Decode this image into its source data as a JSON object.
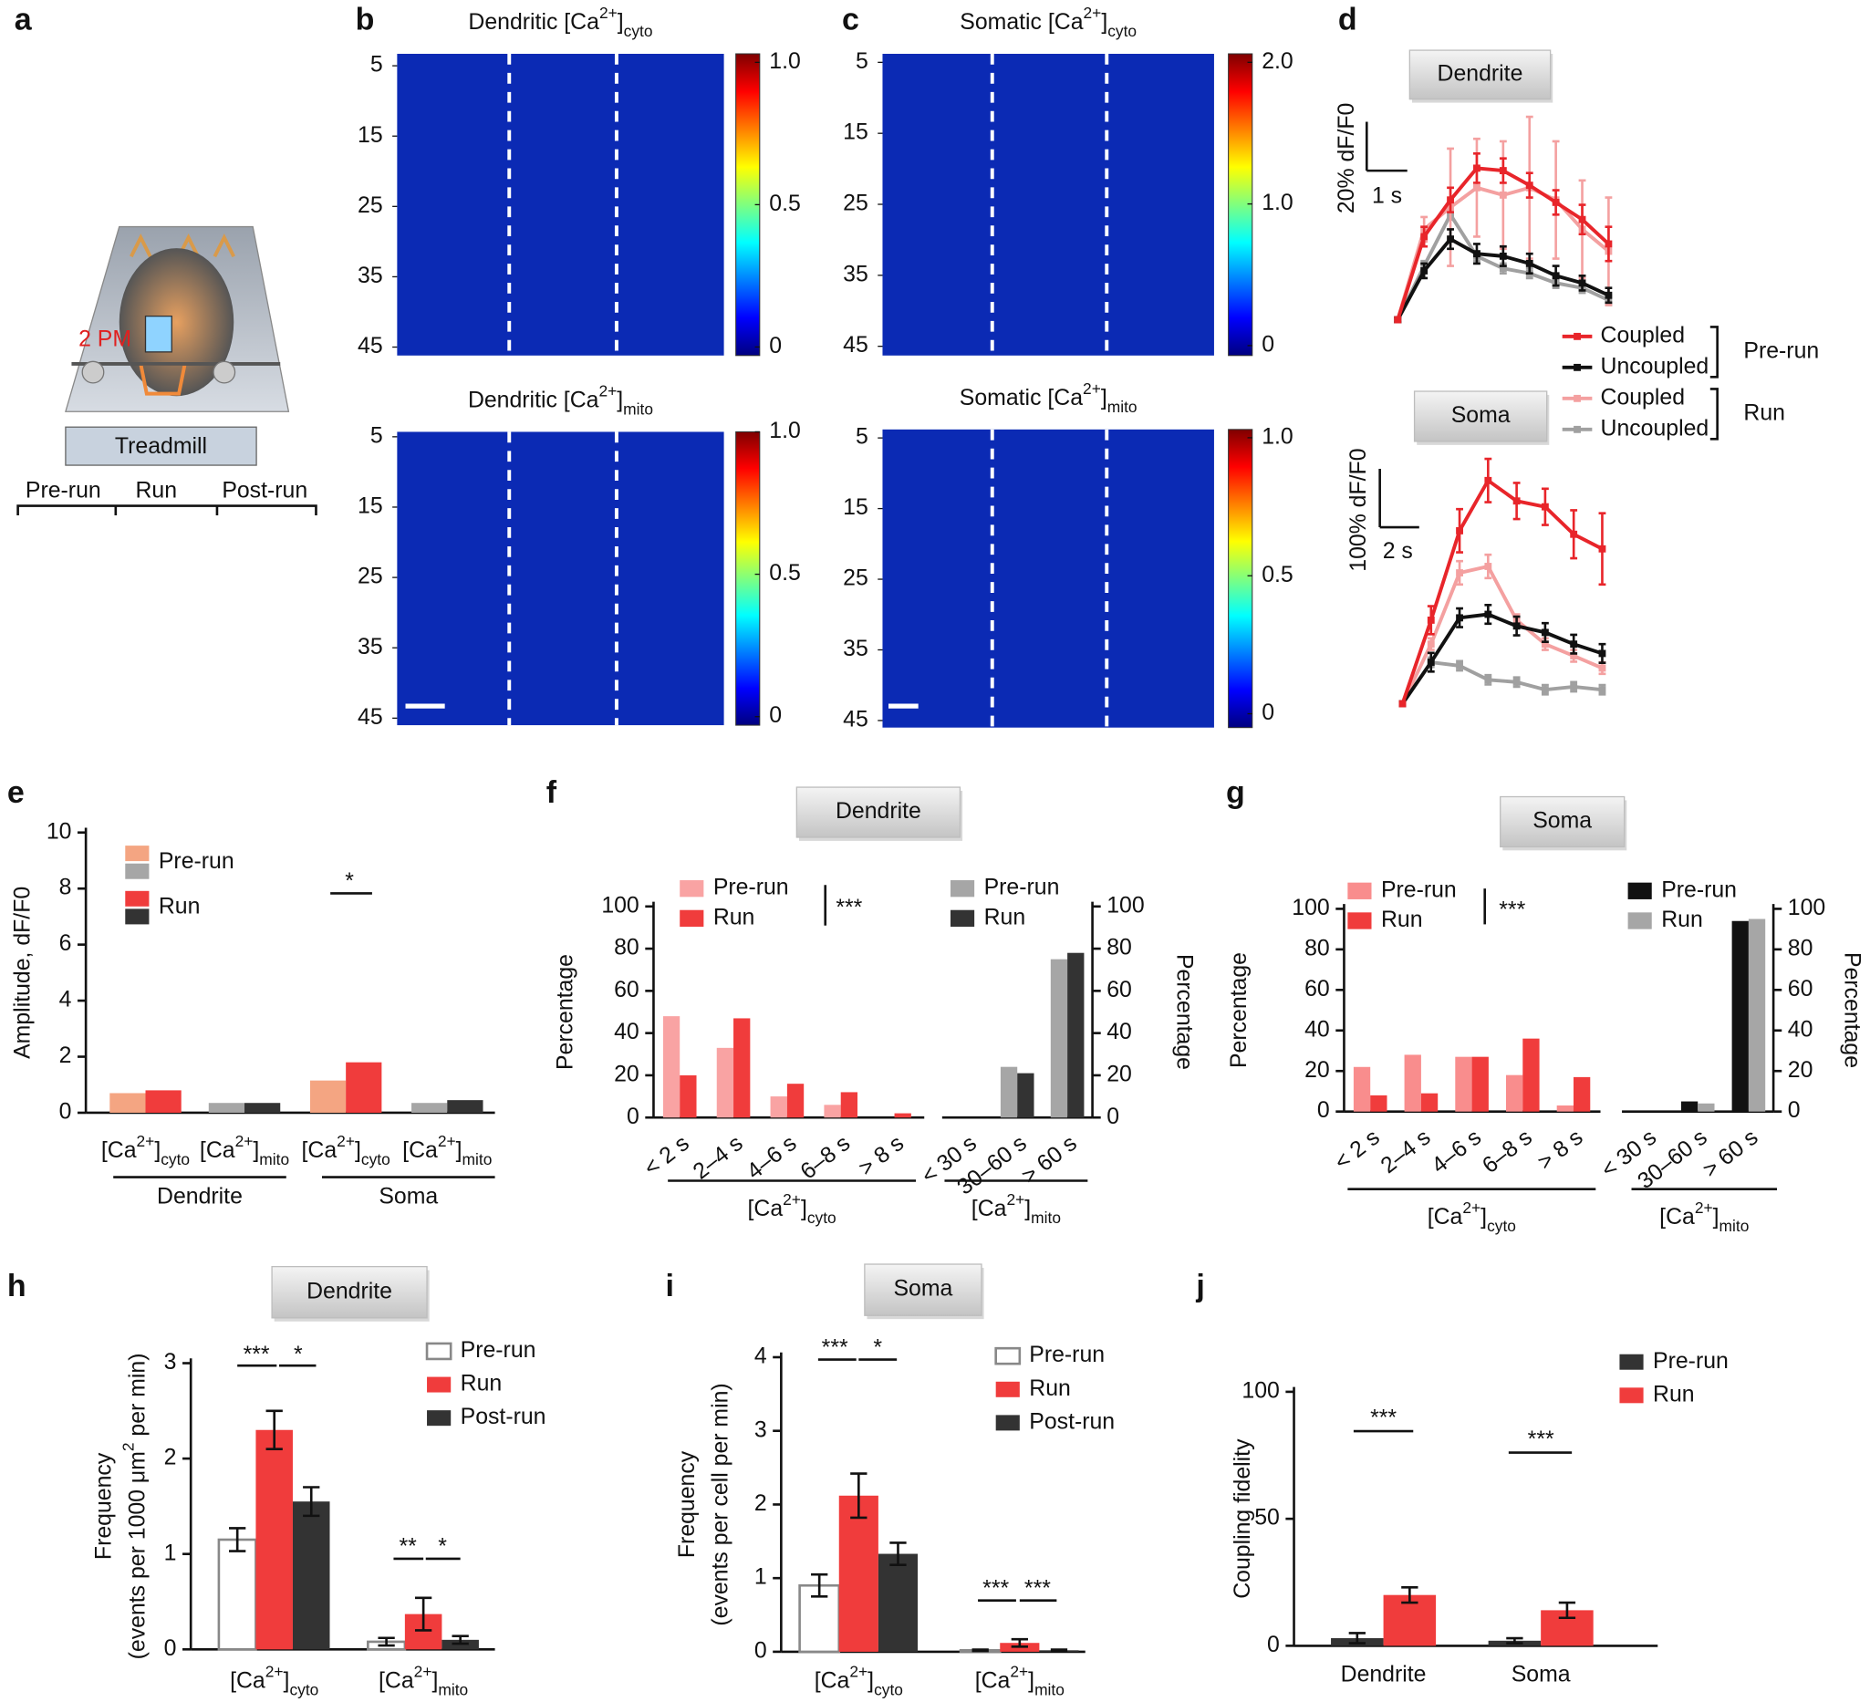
{
  "panel_labels": [
    "a",
    "b",
    "c",
    "d",
    "e",
    "f",
    "g",
    "h",
    "i",
    "j"
  ],
  "schematic": {
    "microscope": "2 PM",
    "device": "Treadmill",
    "phases": [
      "Pre-run",
      "Run",
      "Post-run"
    ]
  },
  "chart_data": [
    {
      "type": "heatmap",
      "title": [
        "Dendritic [Ca",
        "2+",
        "]",
        "cyto"
      ],
      "ylim": [
        3.3,
        46.2
      ],
      "yticks": [
        5,
        15,
        25,
        35,
        45
      ],
      "clim": [
        -0.03,
        1.03
      ],
      "cticks": [
        0,
        0.5,
        {
          "value": 1,
          "label": "1.0"
        }
      ],
      "colormap": [
        "#00007f",
        "#0000ff",
        "#007fff",
        "#00ffff",
        "#7fff7f",
        "#ffff00",
        "#ff7f00",
        "#ff0000",
        "#7f0000"
      ]
    },
    {
      "type": "heatmap",
      "title": [
        "Dendritic [Ca",
        "2+",
        "]",
        "mito"
      ],
      "ylim": [
        4.3,
        46
      ],
      "yticks": [
        5,
        15,
        25,
        35,
        45
      ],
      "clim": [
        -0.03,
        1
      ],
      "cticks": [
        0,
        0.5,
        {
          "value": 1,
          "label": "1.0"
        }
      ],
      "colormap": [
        "#00007f",
        "#0000ff",
        "#007fff",
        "#00ffff",
        "#7fff7f",
        "#ffff00",
        "#ff7f00",
        "#ff0000",
        "#7f0000"
      ]
    },
    {
      "type": "heatmap",
      "title": [
        "Somatic [Ca",
        "2+",
        "]",
        "cyto"
      ],
      "ylim": [
        3.8,
        46.3
      ],
      "yticks": [
        5,
        15,
        25,
        35,
        45
      ],
      "clim": [
        -0.07,
        2.06
      ],
      "cticks": [
        0,
        {
          "value": 1,
          "label": "1.0"
        },
        {
          "value": 2,
          "label": "2.0"
        }
      ],
      "colormap": [
        "#00007f",
        "#0000ff",
        "#007fff",
        "#00ffff",
        "#7fff7f",
        "#ffff00",
        "#ff7f00",
        "#ff0000",
        "#7f0000"
      ]
    },
    {
      "type": "heatmap",
      "title": [
        "Somatic [Ca",
        "2+",
        "]",
        "mito"
      ],
      "ylim": [
        3.8,
        46
      ],
      "yticks": [
        5,
        15,
        25,
        35,
        45
      ],
      "clim": [
        -0.05,
        1.03
      ],
      "cticks": [
        0,
        0.5,
        {
          "value": 1,
          "label": "1.0"
        }
      ],
      "colormap": [
        "#00007f",
        "#0000ff",
        "#007fff",
        "#00ffff",
        "#7fff7f",
        "#ffff00",
        "#ff7f00",
        "#ff0000",
        "#7f0000"
      ]
    },
    {
      "type": "line",
      "series": [
        {
          "name": "Coupled",
          "color": "#e8252a"
        },
        {
          "name": "Uncoupled",
          "color": "#111111"
        },
        {
          "name": "Coupled",
          "color": "#f4a0a0"
        },
        {
          "name": "Uncoupled",
          "color": "#a0a0a0"
        }
      ],
      "legend_groups": [
        "Pre-run",
        "Run"
      ],
      "panels": [
        {
          "title": "Dendrite",
          "scale_y": 20,
          "scale_y_label": "20% dF/F0",
          "scale_x": 1,
          "scale_x_label": "1 s",
          "x": [
            0,
            0.65,
            1.3,
            1.95,
            2.6,
            3.25,
            3.9,
            4.55,
            5.2
          ],
          "values": [
            [
              0,
              34,
              49,
              62,
              61,
              55,
              48,
              41,
              31
            ],
            [
              0,
              20,
              33,
              27,
              26,
              23,
              18,
              15,
              10
            ],
            [
              0,
              37,
              46,
              54,
              51,
              54,
              49,
              37,
              28
            ],
            [
              0,
              22,
              43,
              26,
              21,
              19,
              15,
              13,
              8
            ]
          ],
          "errors": [
            [
              0,
              4,
              5,
              6,
              5,
              5,
              5,
              6,
              7
            ],
            [
              1,
              3,
              4,
              4,
              4,
              4,
              4,
              3,
              3
            ],
            [
              0,
              5,
              24,
              20,
              22,
              29,
              24,
              20,
              22
            ],
            [
              1,
              2,
              2,
              2,
              2,
              2,
              2,
              2,
              2
            ]
          ]
        },
        {
          "title": "Soma",
          "scale_y": 100,
          "scale_y_label": "100% dF/F0",
          "scale_x": 2,
          "scale_x_label": "2 s",
          "x": [
            0,
            1.45,
            2.9,
            4.35,
            5.8,
            7.25,
            8.7,
            10.15
          ],
          "values": [
            [
              0,
              143,
              296,
              382,
              347,
              337,
              290,
              265
            ],
            [
              0,
              71,
              147,
              153,
              133,
              122,
              102,
              86
            ],
            [
              0,
              102,
              224,
              235,
              143,
              102,
              82,
              61
            ],
            [
              0,
              71,
              65,
              41,
              37,
              24,
              29,
              24
            ]
          ],
          "errors": [
            [
              0,
              24,
              37,
              37,
              31,
              31,
              41,
              61
            ],
            [
              0,
              16,
              16,
              16,
              16,
              16,
              16,
              16
            ],
            [
              0,
              10,
              20,
              20,
              10,
              10,
              10,
              10
            ],
            [
              0,
              8,
              8,
              8,
              8,
              8,
              8,
              8
            ]
          ]
        }
      ]
    },
    {
      "type": "bar",
      "ylabel": "Amplitude, dF/F0",
      "categories": [
        [
          "[Ca",
          "2+",
          "]",
          "cyto"
        ],
        [
          "[Ca",
          "2+",
          "]",
          "mito"
        ],
        [
          "[Ca",
          "2+",
          "]",
          "cyto"
        ],
        [
          "[Ca",
          "2+",
          "]",
          "mito"
        ]
      ],
      "group_labels": [
        "Dendrite",
        "Soma"
      ],
      "series": [
        {
          "name": "Pre-run",
          "color": [
            "#f4a582",
            "#a6a6a6"
          ],
          "values": [
            0.7,
            0.35,
            1.15,
            0.35
          ]
        },
        {
          "name": "Run",
          "color": [
            "#f03c3c",
            "#333333"
          ],
          "values": [
            0.8,
            0.35,
            1.8,
            0.45
          ]
        }
      ],
      "ylim": [
        0,
        10
      ],
      "yticks": [
        0,
        2,
        4,
        6,
        8,
        10
      ],
      "annotations": [
        "*"
      ]
    },
    {
      "type": "dual_bar",
      "title": "Dendrite",
      "annotations": [
        "***"
      ],
      "left": {
        "categories": [
          "< 2 s",
          "2–4 s",
          "4–6 s",
          "6–8 s",
          "> 8 s"
        ],
        "group_label": [
          "[Ca",
          "2+",
          "]",
          "cyto"
        ],
        "series": [
          {
            "name": "Pre-run",
            "color": "#f9a3a3",
            "values": [
              48,
              33,
              10,
              6,
              0
            ]
          },
          {
            "name": "Run",
            "color": "#f03c3c",
            "values": [
              20,
              47,
              16,
              12,
              2
            ]
          }
        ],
        "ylim": [
          0,
          100
        ],
        "yticks": [
          0,
          20,
          40,
          60,
          80,
          100
        ],
        "ylabel": "Percentage"
      },
      "right": {
        "categories": [
          "< 30 s",
          "30–60 s",
          "> 60 s"
        ],
        "group_label": [
          "[Ca",
          "2+",
          "]",
          "mito"
        ],
        "series": [
          {
            "name": "Pre-run",
            "color": "#a6a6a6",
            "values": [
              0,
              24,
              75
            ]
          },
          {
            "name": "Run",
            "color": "#333333",
            "values": [
              0,
              21,
              78
            ]
          }
        ],
        "ylim": [
          0,
          100
        ],
        "yticks": [
          0,
          20,
          40,
          60,
          80,
          100
        ],
        "ylabel": "Percentage"
      }
    },
    {
      "type": "dual_bar",
      "title": "Soma",
      "annotations": [
        "***"
      ],
      "left": {
        "categories": [
          "< 2 s",
          "2–4 s",
          "4–6 s",
          "6–8 s",
          "> 8 s"
        ],
        "group_label": [
          "[Ca",
          "2+",
          "]",
          "cyto"
        ],
        "series": [
          {
            "name": "Pre-run",
            "color": "#f98d8d",
            "values": [
              22,
              28,
              27,
              18,
              3
            ]
          },
          {
            "name": "Run",
            "color": "#f03c3c",
            "values": [
              8,
              9,
              27,
              36,
              17
            ]
          }
        ],
        "ylim": [
          0,
          100
        ],
        "yticks": [
          0,
          20,
          40,
          60,
          80,
          100
        ],
        "ylabel": "Percentage"
      },
      "right": {
        "categories": [
          "< 30 s",
          "30–60 s",
          "> 60 s"
        ],
        "group_label": [
          "[Ca",
          "2+",
          "]",
          "mito"
        ],
        "series": [
          {
            "name": "Pre-run",
            "color": "#111111",
            "values": [
              0,
              5,
              94
            ]
          },
          {
            "name": "Run",
            "color": "#a6a6a6",
            "values": [
              0,
              4,
              95
            ]
          }
        ],
        "ylim": [
          0,
          100
        ],
        "yticks": [
          0,
          20,
          40,
          60,
          80,
          100
        ],
        "ylabel": "Percentage"
      }
    },
    {
      "type": "bar",
      "title": "Dendrite",
      "ylabel": "Frequency",
      "ylabel2": [
        "(events per 1000 μm",
        "2",
        " per min)"
      ],
      "categories": [
        [
          "[Ca",
          "2+",
          "]",
          "cyto"
        ],
        [
          "[Ca",
          "2+",
          "]",
          "mito"
        ]
      ],
      "series": [
        {
          "name": "Pre-run",
          "color": "#ffffff",
          "edgecolor": "#888888",
          "values": [
            1.15,
            0.08
          ],
          "errors": [
            0.12,
            0.04
          ]
        },
        {
          "name": "Run",
          "color": "#f03c3c",
          "values": [
            2.3,
            0.37
          ],
          "errors": [
            0.2,
            0.17
          ]
        },
        {
          "name": "Post-run",
          "color": "#333333",
          "values": [
            1.55,
            0.1
          ],
          "errors": [
            0.15,
            0.04
          ]
        }
      ],
      "ylim": [
        0,
        3
      ],
      "yticks": [
        0,
        1,
        2,
        3
      ],
      "annotations": [
        "***",
        "*",
        "**",
        "*"
      ]
    },
    {
      "type": "bar",
      "title": "Soma",
      "ylabel": "Frequency",
      "ylabel2": "(events per cell per min)",
      "categories": [
        [
          "[Ca",
          "2+",
          "]",
          "cyto"
        ],
        [
          "[Ca",
          "2+",
          "]",
          "mito"
        ]
      ],
      "series": [
        {
          "name": "Pre-run",
          "color": "#ffffff",
          "edgecolor": "#888888",
          "values": [
            0.9,
            0.02
          ],
          "errors": [
            0.15,
            0.01
          ]
        },
        {
          "name": "Run",
          "color": "#f03c3c",
          "values": [
            2.12,
            0.12
          ],
          "errors": [
            0.3,
            0.05
          ]
        },
        {
          "name": "Post-run",
          "color": "#333333",
          "values": [
            1.33,
            0.02
          ],
          "errors": [
            0.15,
            0.01
          ]
        }
      ],
      "ylim": [
        0,
        4
      ],
      "yticks": [
        0,
        1,
        2,
        3,
        4
      ],
      "annotations": [
        "***",
        "*",
        "***",
        "***"
      ]
    },
    {
      "type": "bar",
      "ylabel": "Coupling fidelity",
      "categories": [
        "Dendrite",
        "Soma"
      ],
      "series": [
        {
          "name": "Pre-run",
          "color": "#333333",
          "values": [
            3,
            2
          ],
          "errors": [
            2,
            1
          ]
        },
        {
          "name": "Run",
          "color": "#f03c3c",
          "values": [
            20,
            14
          ],
          "errors": [
            3,
            3
          ]
        }
      ],
      "ylim": [
        0,
        100
      ],
      "yticks": [
        0,
        50,
        100
      ],
      "annotations": [
        "***",
        "***"
      ]
    }
  ]
}
